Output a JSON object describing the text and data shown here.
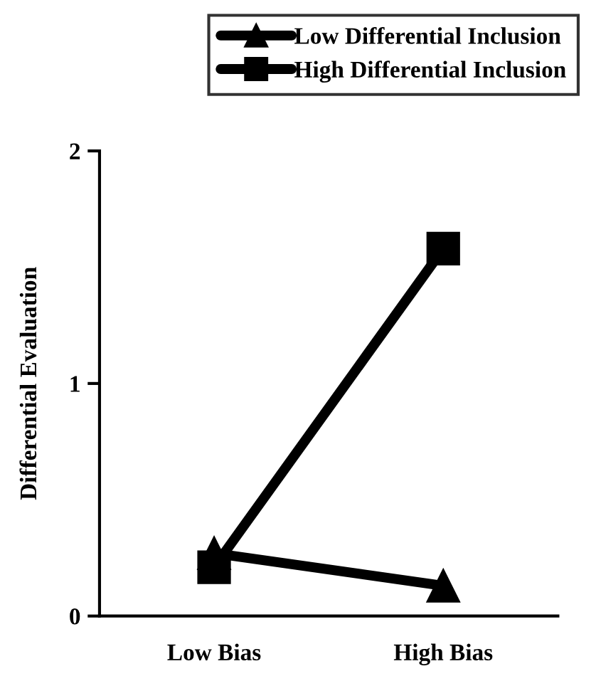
{
  "chart_data": {
    "type": "line",
    "ylabel": "Differential Evaluation",
    "categories": [
      "Low Bias",
      "High Bias"
    ],
    "series": [
      {
        "name": "Low Differential Inclusion",
        "color": "#000000",
        "values": [
          0.27,
          0.13
        ],
        "marker": "triangle"
      },
      {
        "name": "High Differential Inclusion",
        "color": "#000000",
        "values": [
          0.21,
          1.58
        ],
        "marker": "square"
      }
    ],
    "ylim": [
      0,
      2
    ],
    "yticks": [
      0,
      1,
      2
    ],
    "grid": false,
    "legend": "top",
    "line_style": "solid"
  }
}
